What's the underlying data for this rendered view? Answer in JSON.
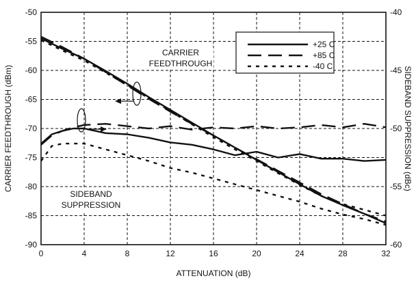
{
  "chart_data": {
    "type": "line",
    "xlabel": "ATTENUATION (dB)",
    "ylabel_left": "CARRIER FEEDTHROUGH (dBm)",
    "ylabel_right": "SIDEBAND SUPPRESSION (dBc)",
    "xlim": [
      0,
      32
    ],
    "ylim_left": [
      -90,
      -50
    ],
    "ylim_right": [
      -60,
      -40
    ],
    "x_ticks": [
      "0",
      "4",
      "8",
      "12",
      "16",
      "20",
      "24",
      "28",
      "32"
    ],
    "y_ticks_left": [
      "-50",
      "-55",
      "-60",
      "-65",
      "-70",
      "-75",
      "-80",
      "-85",
      "-90"
    ],
    "y_ticks_right": [
      "-40",
      "-45",
      "-50",
      "-55",
      "-60"
    ],
    "grid": true,
    "legend_position": "top-right",
    "legend": [
      {
        "label": "+25 C",
        "style": "solid"
      },
      {
        "label": "+85 C",
        "style": "dashed"
      },
      {
        "label": "-40 C",
        "style": "dotted"
      }
    ],
    "annotations": {
      "carrier_line1": "CARRIER",
      "carrier_line2": "FEEDTHROUGH",
      "sideband_line1": "SIDEBAND",
      "sideband_line2": "SUPPRESSION"
    },
    "series": [
      {
        "name": "+25 C",
        "group": "carrier_feedthrough",
        "axis": "left",
        "style": "solid",
        "x": [
          0,
          2,
          4,
          6,
          8,
          10,
          12,
          14,
          16,
          18,
          20,
          22,
          24,
          26,
          28,
          30,
          32
        ],
        "y": [
          -54.5,
          -56.3,
          -58.0,
          -60.1,
          -62.3,
          -64.6,
          -66.8,
          -69.0,
          -71.2,
          -73.3,
          -75.4,
          -77.5,
          -79.6,
          -81.6,
          -83.2,
          -84.7,
          -86.3
        ]
      },
      {
        "name": "+85 C",
        "group": "carrier_feedthrough",
        "axis": "left",
        "style": "dashed",
        "x": [
          0,
          2,
          4,
          6,
          8,
          10,
          12,
          14,
          16,
          18,
          20,
          22,
          24,
          26,
          28,
          30,
          32
        ],
        "y": [
          -54.2,
          -56.0,
          -58.0,
          -60.3,
          -62.6,
          -64.9,
          -67.1,
          -69.2,
          -71.2,
          -73.3,
          -75.3,
          -77.3,
          -79.3,
          -81.3,
          -83.0,
          -84.7,
          -86.0
        ]
      },
      {
        "name": "-40 C",
        "group": "carrier_feedthrough",
        "axis": "left",
        "style": "dotted",
        "x": [
          0,
          2,
          4,
          6,
          8,
          10,
          12,
          14,
          16,
          18,
          20,
          22,
          24,
          26,
          28,
          30,
          32
        ],
        "y": [
          -54.8,
          -56.6,
          -58.3,
          -60.4,
          -62.5,
          -64.8,
          -67.0,
          -69.3,
          -71.5,
          -73.6,
          -75.6,
          -77.7,
          -79.7,
          -81.6,
          -83.0,
          -84.0,
          -85.0
        ]
      },
      {
        "name": "+25 C",
        "group": "sideband_suppression",
        "axis": "right",
        "style": "solid",
        "x": [
          0,
          1,
          2,
          3,
          4,
          6,
          8,
          10,
          12,
          14,
          16,
          18,
          20,
          22,
          24,
          26,
          28,
          30,
          32
        ],
        "y": [
          -51.3,
          -50.5,
          -50.2,
          -50.0,
          -50.0,
          -50.4,
          -50.5,
          -50.8,
          -51.2,
          -51.4,
          -51.8,
          -52.3,
          -52.0,
          -52.5,
          -52.2,
          -52.6,
          -52.6,
          -52.8,
          -52.7
        ]
      },
      {
        "name": "+85 C",
        "group": "sideband_suppression",
        "axis": "right",
        "style": "dashed",
        "x": [
          0,
          1,
          2,
          3,
          4,
          6,
          8,
          10,
          12,
          14,
          16,
          18,
          20,
          22,
          24,
          26,
          28,
          30,
          32
        ],
        "y": [
          -51.4,
          -50.6,
          -50.2,
          -49.9,
          -49.7,
          -49.6,
          -49.8,
          -50.0,
          -49.8,
          -50.1,
          -49.9,
          -50.0,
          -49.8,
          -50.0,
          -49.9,
          -49.7,
          -49.9,
          -49.6,
          -49.9
        ]
      },
      {
        "name": "-40 C",
        "group": "sideband_suppression",
        "axis": "right",
        "style": "dotted",
        "x": [
          0,
          1,
          2,
          3,
          4,
          6,
          8,
          10,
          12,
          14,
          16,
          18,
          20,
          22,
          24,
          26,
          28,
          30,
          32
        ],
        "y": [
          -52.8,
          -51.5,
          -51.3,
          -51.3,
          -51.3,
          -51.8,
          -52.3,
          -52.8,
          -53.4,
          -53.8,
          -54.3,
          -54.8,
          -55.3,
          -55.8,
          -56.3,
          -56.9,
          -57.4,
          -57.8,
          -58.3
        ]
      }
    ]
  }
}
